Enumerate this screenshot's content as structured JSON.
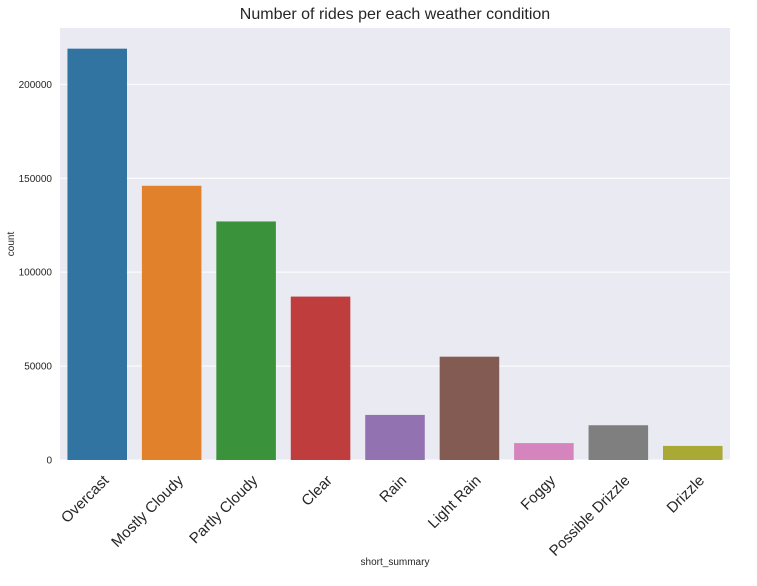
{
  "chart_data": {
    "type": "bar",
    "title": "Number of rides per each weather condition",
    "xlabel": "short_summary",
    "ylabel": "count",
    "categories": [
      "Overcast",
      "Mostly Cloudy",
      "Partly Cloudy",
      "Clear",
      "Rain",
      "Light Rain",
      "Foggy",
      "Possible Drizzle",
      "Drizzle"
    ],
    "values": [
      219000,
      146000,
      127000,
      87000,
      24000,
      55000,
      9000,
      18500,
      7500
    ],
    "colors": [
      "#3274a1",
      "#e1812c",
      "#3a923a",
      "#c03d3e",
      "#9372b2",
      "#845b53",
      "#d684bd",
      "#7f7f7f",
      "#a9aa35"
    ],
    "ylim": [
      0,
      230000
    ],
    "yticks": [
      0,
      50000,
      100000,
      150000,
      200000
    ],
    "ytick_labels": [
      "0",
      "50000",
      "100000",
      "150000",
      "200000"
    ],
    "grid": true,
    "background": "#eaeaf2"
  }
}
